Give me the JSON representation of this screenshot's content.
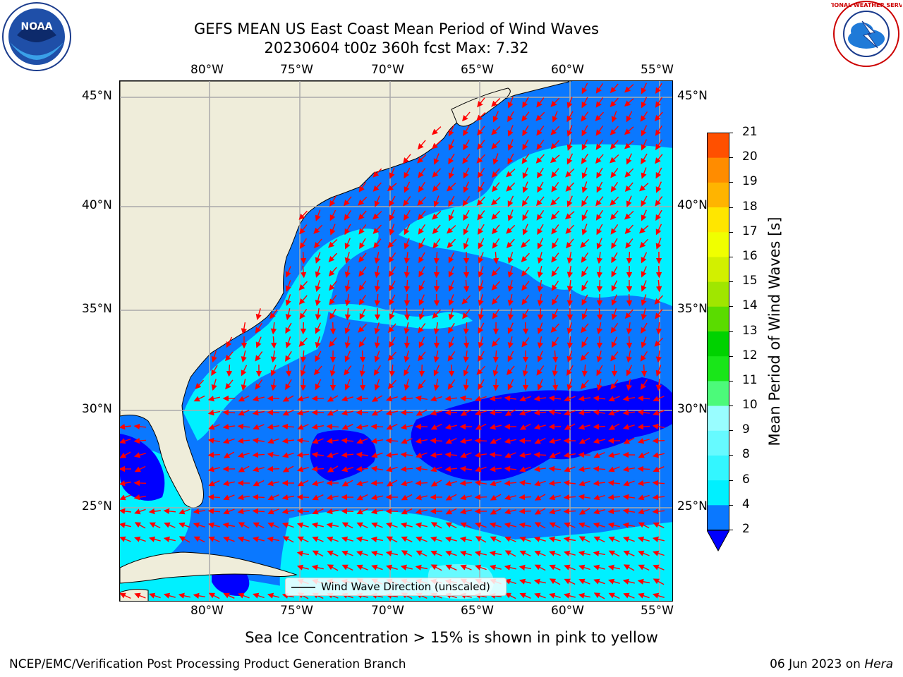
{
  "header": {
    "title_line1": "GEFS MEAN US East Coast Mean Period of Wind Waves",
    "title_line2": "20230604 t00z 360h fcst   Max: 7.32"
  },
  "logos": {
    "noaa": {
      "icon": "noaa-logo-icon",
      "text": "NOAA"
    },
    "nws": {
      "icon": "nws-logo-icon",
      "text": "NATIONAL WEATHER SERVICE"
    }
  },
  "map": {
    "lon_ticks": [
      "80°W",
      "75°W",
      "70°W",
      "65°W",
      "60°W",
      "55°W"
    ],
    "lat_ticks": [
      "45°N",
      "40°N",
      "35°N",
      "30°N",
      "25°N"
    ],
    "legend_label": "Wind Wave Direction (unscaled)",
    "land_color": "#efedda",
    "arrow_color": "#ff0000"
  },
  "colorbar": {
    "label": "Mean Period of Wind Waves [s]",
    "ticks": [
      "2",
      "4",
      "6",
      "8",
      "9",
      "10",
      "11",
      "12",
      "13",
      "14",
      "15",
      "16",
      "17",
      "18",
      "19",
      "20",
      "21"
    ],
    "colors": [
      "#0a78ff",
      "#00f0ff",
      "#33f6ff",
      "#66faff",
      "#99fdff",
      "#4cfa7a",
      "#19e619",
      "#00d200",
      "#5adc00",
      "#a0e600",
      "#d2f000",
      "#f0ff00",
      "#ffe600",
      "#ffb400",
      "#ff8c00",
      "#ff5000",
      "#ff1e00",
      "#ff0000"
    ],
    "under_color": "#0000ff"
  },
  "footer": {
    "note": "Sea Ice Concentration > 15% is shown in pink to yellow",
    "left": "NCEP/EMC/Verification Post Processing Product Generation Branch",
    "right_date": "06 Jun 2023 on ",
    "right_machine": "Hera"
  }
}
